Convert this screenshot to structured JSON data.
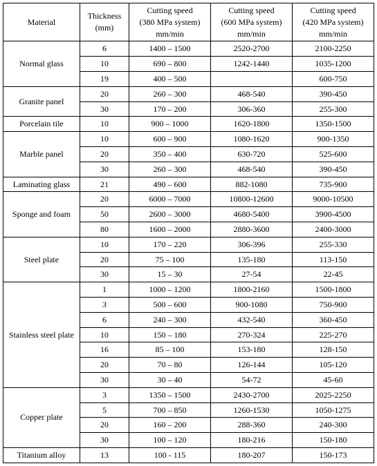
{
  "headers": {
    "material": "Material",
    "thickness": {
      "l1": "Thickness",
      "l2": "(mm)"
    },
    "cs380": {
      "l1": "Cutting speed",
      "l2": "(380 MPa system)",
      "l3": "mm/min"
    },
    "cs600": {
      "l1": "Cutting speed",
      "l2": "(600 MPa system)",
      "l3": "mm/min"
    },
    "cs420": {
      "l1": "Cutting speed",
      "l2": "(420 MPa system)",
      "l3": "mm/min"
    }
  },
  "rows": [
    {
      "material": "Normal glass",
      "data": [
        {
          "th": "6",
          "c380": "1400 – 1500",
          "c600": "2520-2700",
          "c420": "2100-2250"
        },
        {
          "th": "10",
          "c380": "690 – 800",
          "c600": "1242-1440",
          "c420": "1035-1200"
        },
        {
          "th": "19",
          "c380": "400 – 500",
          "c600": "",
          "c420": "600-750"
        }
      ]
    },
    {
      "material": "Granite panel",
      "data": [
        {
          "th": "20",
          "c380": "260 – 300",
          "c600": "468-540",
          "c420": "390-450"
        },
        {
          "th": "30",
          "c380": "170 – 200",
          "c600": "306-360",
          "c420": "255-300"
        }
      ]
    },
    {
      "material": "Porcelain tile",
      "data": [
        {
          "th": "10",
          "c380": "900 – 1000",
          "c600": "1620-1800",
          "c420": "1350-1500"
        }
      ]
    },
    {
      "material": "Marble panel",
      "data": [
        {
          "th": "10",
          "c380": "600 – 900",
          "c600": "1080-1620",
          "c420": "900-1350"
        },
        {
          "th": "20",
          "c380": "350 – 400",
          "c600": "630-720",
          "c420": "525-600"
        },
        {
          "th": "30",
          "c380": "260 – 300",
          "c600": "468-540",
          "c420": "390-450"
        }
      ]
    },
    {
      "material": "Laminating glass",
      "data": [
        {
          "th": "21",
          "c380": "490 – 600",
          "c600": "882-1080",
          "c420": "735-900"
        }
      ]
    },
    {
      "material": "Sponge and foam",
      "data": [
        {
          "th": "20",
          "c380": "6000 – 7000",
          "c600": "10800-12600",
          "c420": "9000-10500"
        },
        {
          "th": "50",
          "c380": "2600 – 3000",
          "c600": "4680-5400",
          "c420": "3900-4500"
        },
        {
          "th": "80",
          "c380": "1600 – 2000",
          "c600": "2880-3600",
          "c420": "2400-3000"
        }
      ]
    },
    {
      "material": "Steel plate",
      "data": [
        {
          "th": "10",
          "c380": "170 – 220",
          "c600": "306-396",
          "c420": "255-330"
        },
        {
          "th": "20",
          "c380": "75 – 100",
          "c600": "135-180",
          "c420": "113-150"
        },
        {
          "th": "30",
          "c380": "15 – 30",
          "c600": "27-54",
          "c420": "22-45"
        }
      ]
    },
    {
      "material": "Stainless steel plate",
      "data": [
        {
          "th": "1",
          "c380": "1000 – 1200",
          "c600": "1800-2160",
          "c420": "1500-1800"
        },
        {
          "th": "3",
          "c380": "500 – 600",
          "c600": "900-1080",
          "c420": "750-900"
        },
        {
          "th": "6",
          "c380": "240 – 300",
          "c600": "432-540",
          "c420": "360-450"
        },
        {
          "th": "10",
          "c380": "150 – 180",
          "c600": "270-324",
          "c420": "225-270"
        },
        {
          "th": "16",
          "c380": "85 – 100",
          "c600": "153-180",
          "c420": "128-150"
        },
        {
          "th": "20",
          "c380": "70 – 80",
          "c600": "126-144",
          "c420": "105-120"
        },
        {
          "th": "30",
          "c380": "30 – 40",
          "c600": "54-72",
          "c420": "45-60"
        }
      ]
    },
    {
      "material": "Copper plate",
      "data": [
        {
          "th": "3",
          "c380": "1350 – 1500",
          "c600": "2430-2700",
          "c420": "2025-2250"
        },
        {
          "th": "5",
          "c380": "700 – 850",
          "c600": "1260-1530",
          "c420": "1050-1275"
        },
        {
          "th": "20",
          "c380": "160 – 200",
          "c600": "288-360",
          "c420": "240-300"
        },
        {
          "th": "30",
          "c380": "100 – 120",
          "c600": "180-216",
          "c420": "150-180"
        }
      ]
    },
    {
      "material": "Titanium alloy",
      "data": [
        {
          "th": "13",
          "c380": "100 - 115",
          "c600": "180-207",
          "c420": "150-173"
        }
      ]
    }
  ]
}
